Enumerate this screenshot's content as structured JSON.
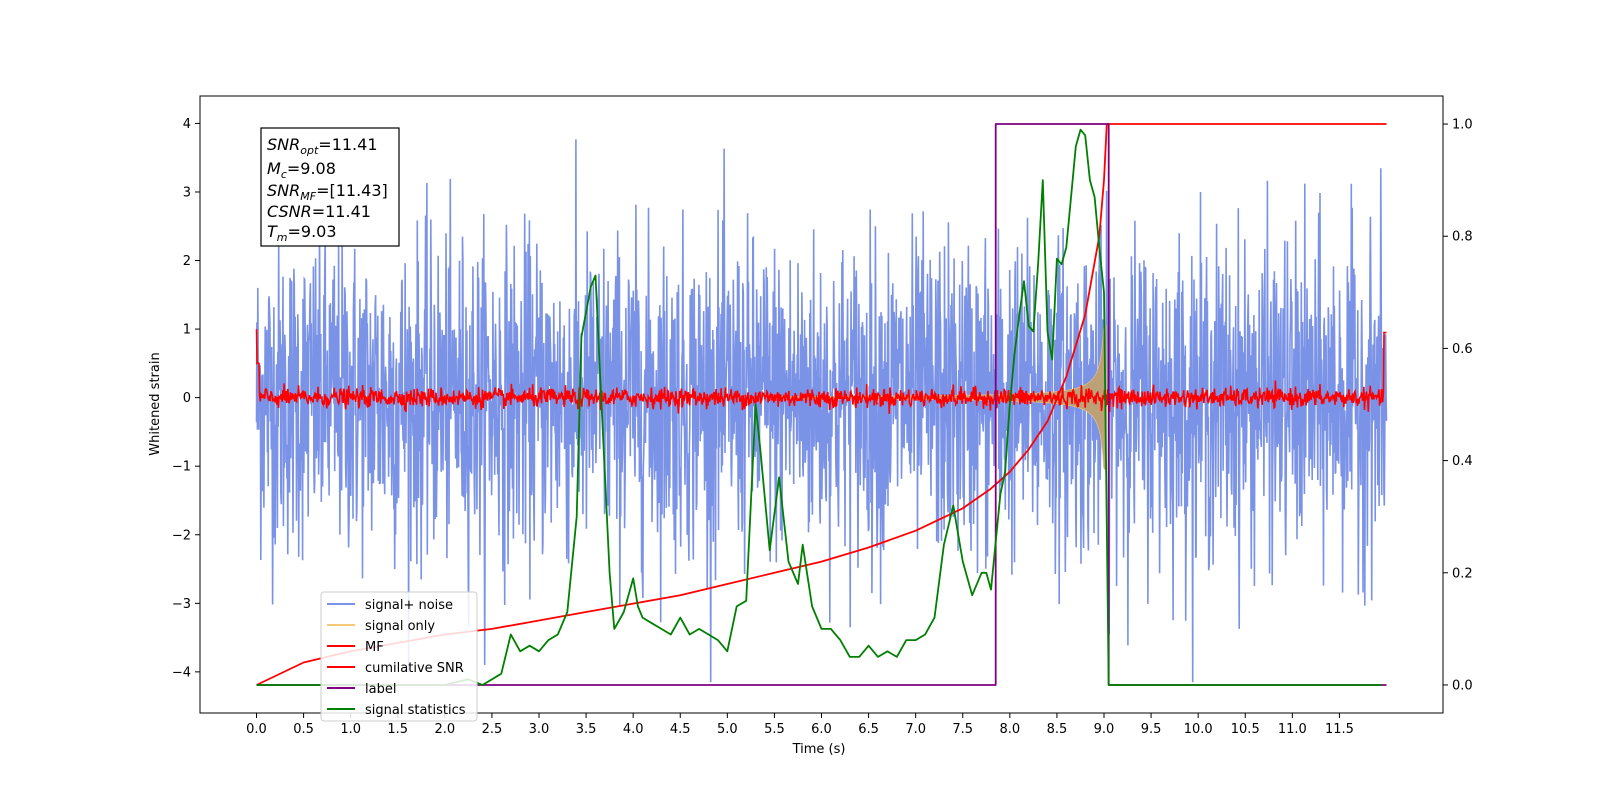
{
  "chart_data": {
    "type": "line",
    "xlabel": "Time (s)",
    "ylabel": "Whitened strain",
    "xlim": [
      -0.6,
      12.6
    ],
    "ylim": [
      -4.6,
      4.4
    ],
    "ylim_right": [
      -0.05,
      1.05
    ],
    "x_ticks": [
      "0.0",
      "0.5",
      "1.0",
      "1.5",
      "2.0",
      "2.5",
      "3.0",
      "3.5",
      "4.0",
      "4.5",
      "5.0",
      "5.5",
      "6.0",
      "6.5",
      "7.0",
      "7.5",
      "8.0",
      "8.5",
      "9.0",
      "9.5",
      "10.0",
      "10.5",
      "11.0",
      "11.5"
    ],
    "y_ticks_left": [
      "4",
      "3",
      "2",
      "1",
      "0",
      "−1",
      "−2",
      "−3",
      "−4"
    ],
    "y_ticks_right": [
      "1.0",
      "0.8",
      "0.6",
      "0.4",
      "0.2",
      "0.0"
    ],
    "grid": false,
    "legend_position": "lower-left",
    "stats_box": {
      "snr_opt": {
        "base": "SNR",
        "sub": "opt",
        "value": "=11.41"
      },
      "mc": {
        "base": "M",
        "sub": "c",
        "value": "=9.08"
      },
      "snr_mf": {
        "base": "SNR",
        "sub": "MF",
        "value": "=[11.43]"
      },
      "csnr": {
        "base": "CSNR",
        "sub": "",
        "value": "=11.41"
      },
      "tm": {
        "base": "T",
        "sub": "m",
        "value": "=9.03"
      }
    },
    "series": [
      {
        "name": "signal+ noise",
        "color": "#7b93e6",
        "axis": "left",
        "description": "noise band approx amplitude 1 std, extremes near ±4"
      },
      {
        "name": "signal only",
        "color": "#f5c97a",
        "axis": "left",
        "description": "chirp envelope growing until merger at t=9.03, amplitude ~1"
      },
      {
        "name": "MF",
        "color": "#ff0000",
        "axis": "left",
        "description": "matched-filter output fluctuating around 0 with edge spikes to ~1"
      },
      {
        "name": "cumilative SNR",
        "color": "#ff0000",
        "axis": "right",
        "x": [
          0.0,
          0.5,
          1.0,
          1.5,
          2.0,
          2.5,
          3.0,
          3.5,
          4.0,
          4.5,
          5.0,
          5.5,
          6.0,
          6.5,
          7.0,
          7.5,
          7.8,
          8.0,
          8.2,
          8.4,
          8.6,
          8.8,
          8.95,
          9.0,
          9.03,
          9.1,
          10.0,
          11.0,
          12.0
        ],
        "values": [
          0.0,
          0.04,
          0.06,
          0.075,
          0.09,
          0.1,
          0.115,
          0.13,
          0.145,
          0.16,
          0.18,
          0.2,
          0.22,
          0.245,
          0.275,
          0.315,
          0.35,
          0.38,
          0.42,
          0.47,
          0.55,
          0.66,
          0.8,
          0.9,
          1.0,
          1.0,
          1.0,
          1.0,
          1.0
        ]
      },
      {
        "name": "label",
        "color": "#800080",
        "axis": "right",
        "x": [
          0.0,
          7.85,
          7.85,
          8.05,
          8.05,
          9.05,
          9.05,
          12.0
        ],
        "values": [
          0.0,
          0.0,
          1.0,
          1.0,
          1.0,
          1.0,
          0.0,
          0.0
        ]
      },
      {
        "name": "signal statistics",
        "color": "#008000",
        "axis": "right",
        "x": [
          0.0,
          0.5,
          1.0,
          1.5,
          2.0,
          2.25,
          2.4,
          2.6,
          2.7,
          2.8,
          2.9,
          3.0,
          3.1,
          3.2,
          3.3,
          3.4,
          3.45,
          3.55,
          3.6,
          3.65,
          3.75,
          3.8,
          3.9,
          4.0,
          4.05,
          4.1,
          4.2,
          4.3,
          4.4,
          4.5,
          4.6,
          4.7,
          4.8,
          4.9,
          5.0,
          5.1,
          5.2,
          5.3,
          5.35,
          5.45,
          5.55,
          5.65,
          5.75,
          5.8,
          5.9,
          6.0,
          6.1,
          6.2,
          6.3,
          6.4,
          6.5,
          6.6,
          6.7,
          6.8,
          6.9,
          7.0,
          7.1,
          7.2,
          7.3,
          7.4,
          7.45,
          7.5,
          7.55,
          7.6,
          7.7,
          7.75,
          7.8,
          7.9,
          7.95,
          8.0,
          8.05,
          8.1,
          8.15,
          8.2,
          8.25,
          8.3,
          8.35,
          8.4,
          8.45,
          8.5,
          8.55,
          8.6,
          8.7,
          8.75,
          8.8,
          8.85,
          8.9,
          8.95,
          9.0,
          9.05,
          9.1,
          10.0,
          11.0,
          11.95
        ],
        "values": [
          0.0,
          0.0,
          0.0,
          0.0,
          0.0,
          0.01,
          0.0,
          0.02,
          0.09,
          0.06,
          0.07,
          0.06,
          0.08,
          0.09,
          0.13,
          0.3,
          0.62,
          0.71,
          0.73,
          0.55,
          0.2,
          0.1,
          0.13,
          0.19,
          0.14,
          0.12,
          0.11,
          0.1,
          0.09,
          0.12,
          0.09,
          0.1,
          0.09,
          0.08,
          0.06,
          0.14,
          0.15,
          0.5,
          0.42,
          0.24,
          0.37,
          0.22,
          0.18,
          0.25,
          0.14,
          0.1,
          0.1,
          0.08,
          0.05,
          0.05,
          0.07,
          0.05,
          0.06,
          0.05,
          0.08,
          0.08,
          0.09,
          0.12,
          0.25,
          0.32,
          0.27,
          0.22,
          0.19,
          0.16,
          0.2,
          0.2,
          0.17,
          0.34,
          0.38,
          0.5,
          0.59,
          0.66,
          0.72,
          0.64,
          0.63,
          0.75,
          0.9,
          0.63,
          0.58,
          0.76,
          0.75,
          0.78,
          0.96,
          0.99,
          0.98,
          0.9,
          0.87,
          0.78,
          0.7,
          0.0,
          0.0,
          0.0,
          0.0,
          0.0
        ]
      }
    ]
  }
}
